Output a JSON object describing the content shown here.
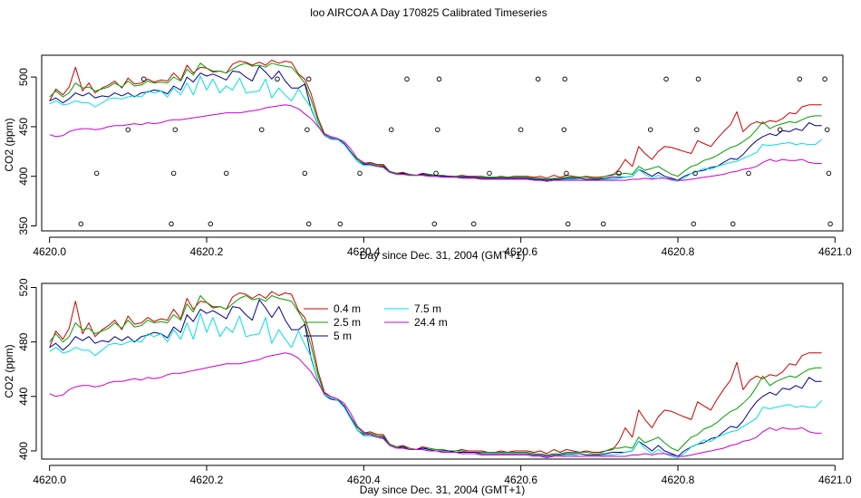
{
  "page_title": "loo AIRCOA A  Day 170825  Calibrated Timeseries",
  "chart_data": [
    {
      "type": "line",
      "title": "loo AIRCOA A  Day 170825  Calibrated Timeseries",
      "xlabel": "Day since Dec. 31, 2004 (GMT+1)",
      "ylabel": "CO2 (ppm)",
      "xlim": [
        4619.99,
        4621.01
      ],
      "ylim": [
        345,
        522
      ],
      "x_ticks": [
        "4620.0",
        "4620.2",
        "4620.4",
        "4620.6",
        "4620.8",
        "4621.0"
      ],
      "y_ticks": [
        "350",
        "400",
        "450",
        "500"
      ],
      "grid": false,
      "legend": "none",
      "series_ref": "shared",
      "markers": {
        "style": "open-circle",
        "points": [
          [
            4620.04,
            352
          ],
          [
            4620.06,
            403
          ],
          [
            4620.1,
            447
          ],
          [
            4620.12,
            498
          ],
          [
            4620.155,
            352
          ],
          [
            4620.158,
            403
          ],
          [
            4620.16,
            447
          ],
          [
            4620.205,
            352
          ],
          [
            4620.225,
            403
          ],
          [
            4620.27,
            447
          ],
          [
            4620.29,
            498
          ],
          [
            4620.325,
            403
          ],
          [
            4620.328,
            447
          ],
          [
            4620.33,
            352
          ],
          [
            4620.33,
            498
          ],
          [
            4620.37,
            352
          ],
          [
            4620.395,
            403
          ],
          [
            4620.435,
            447
          ],
          [
            4620.455,
            498
          ],
          [
            4620.49,
            352
          ],
          [
            4620.492,
            403
          ],
          [
            4620.494,
            447
          ],
          [
            4620.496,
            498
          ],
          [
            4620.54,
            352
          ],
          [
            4620.56,
            403
          ],
          [
            4620.6,
            447
          ],
          [
            4620.622,
            498
          ],
          [
            4620.655,
            447
          ],
          [
            4620.656,
            498
          ],
          [
            4620.658,
            403
          ],
          [
            4620.66,
            352
          ],
          [
            4620.705,
            352
          ],
          [
            4620.725,
            403
          ],
          [
            4620.765,
            447
          ],
          [
            4620.785,
            498
          ],
          [
            4620.82,
            352
          ],
          [
            4620.822,
            403
          ],
          [
            4620.824,
            447
          ],
          [
            4620.826,
            498
          ],
          [
            4620.87,
            352
          ],
          [
            4620.89,
            403
          ],
          [
            4620.93,
            447
          ],
          [
            4620.955,
            498
          ],
          [
            4620.987,
            498
          ],
          [
            4620.99,
            447
          ],
          [
            4620.992,
            403
          ],
          [
            4620.994,
            352
          ]
        ]
      }
    },
    {
      "type": "line",
      "title": "",
      "xlabel": "Day since Dec. 31, 2004 (GMT+1)",
      "ylabel": "CO2 (ppm)",
      "xlim": [
        4619.99,
        4621.01
      ],
      "ylim": [
        394,
        523
      ],
      "x_ticks": [
        "4620.0",
        "4620.2",
        "4620.4",
        "4620.6",
        "4620.8",
        "4621.0"
      ],
      "y_ticks": [
        "400",
        "440",
        "480",
        "520"
      ],
      "grid": false,
      "legend": "top-left",
      "series_ref": "shared"
    }
  ],
  "shared_series": {
    "x": [
      4620.0,
      4620.008,
      4620.017,
      4620.025,
      4620.033,
      4620.042,
      4620.05,
      4620.058,
      4620.067,
      4620.075,
      4620.083,
      4620.092,
      4620.1,
      4620.108,
      4620.117,
      4620.125,
      4620.133,
      4620.142,
      4620.15,
      4620.158,
      4620.167,
      4620.175,
      4620.183,
      4620.192,
      4620.2,
      4620.208,
      4620.217,
      4620.225,
      4620.233,
      4620.242,
      4620.25,
      4620.258,
      4620.267,
      4620.275,
      4620.283,
      4620.292,
      4620.3,
      4620.308,
      4620.317,
      4620.325,
      4620.333,
      4620.342,
      4620.35,
      4620.358,
      4620.367,
      4620.375,
      4620.383,
      4620.392,
      4620.4,
      4620.408,
      4620.417,
      4620.425,
      4620.433,
      4620.442,
      4620.45,
      4620.458,
      4620.467,
      4620.475,
      4620.483,
      4620.492,
      4620.5,
      4620.508,
      4620.517,
      4620.525,
      4620.533,
      4620.542,
      4620.55,
      4620.558,
      4620.567,
      4620.575,
      4620.583,
      4620.592,
      4620.6,
      4620.608,
      4620.617,
      4620.625,
      4620.633,
      4620.642,
      4620.65,
      4620.658,
      4620.667,
      4620.675,
      4620.683,
      4620.692,
      4620.7,
      4620.708,
      4620.717,
      4620.725,
      4620.733,
      4620.742,
      4620.75,
      4620.758,
      4620.767,
      4620.775,
      4620.783,
      4620.792,
      4620.8,
      4620.808,
      4620.817,
      4620.825,
      4620.833,
      4620.842,
      4620.85,
      4620.858,
      4620.867,
      4620.875,
      4620.883,
      4620.892,
      4620.9,
      4620.908,
      4620.917,
      4620.925,
      4620.933,
      4620.942,
      4620.95,
      4620.958,
      4620.967,
      4620.975,
      4620.983
    ],
    "series": [
      {
        "name": "0.4 m",
        "color": "#cc0000",
        "values": [
          476,
          488,
          482,
          490,
          510,
          486,
          494,
          484,
          489,
          492,
          496,
          489,
          499,
          493,
          494,
          498,
          495,
          497,
          496,
          504,
          497,
          512,
          504,
          510,
          509,
          505,
          506,
          504,
          513,
          516,
          515,
          512,
          515,
          512,
          517,
          514,
          516,
          515,
          503,
          498,
          483,
          458,
          443,
          440,
          438,
          433,
          425,
          417,
          413,
          414,
          412,
          412,
          405,
          403,
          404,
          402,
          401,
          403,
          402,
          401,
          401,
          400,
          400,
          401,
          400,
          400,
          400,
          399,
          399,
          400,
          399,
          400,
          400,
          400,
          399,
          400,
          398,
          401,
          399,
          401,
          400,
          399,
          400,
          399,
          399,
          400,
          401,
          407,
          417,
          410,
          430,
          423,
          417,
          425,
          430,
          429,
          427,
          425,
          423,
          436,
          433,
          430,
          438,
          445,
          452,
          465,
          445,
          452,
          455,
          453,
          456,
          455,
          458,
          464,
          463,
          470,
          472,
          472,
          472
        ]
      },
      {
        "name": "2.5 m",
        "color": "#00a000",
        "values": [
          480,
          486,
          480,
          484,
          494,
          489,
          490,
          486,
          488,
          490,
          494,
          490,
          496,
          491,
          492,
          496,
          494,
          495,
          494,
          500,
          496,
          508,
          502,
          514,
          509,
          506,
          506,
          504,
          508,
          512,
          514,
          511,
          512,
          510,
          514,
          512,
          511,
          510,
          502,
          494,
          477,
          455,
          442,
          440,
          438,
          433,
          425,
          417,
          413,
          413,
          411,
          411,
          405,
          403,
          403,
          402,
          401,
          402,
          402,
          401,
          401,
          400,
          400,
          400,
          399,
          399,
          399,
          399,
          399,
          399,
          399,
          399,
          399,
          399,
          398,
          398,
          397,
          398,
          398,
          399,
          399,
          399,
          399,
          398,
          398,
          400,
          402,
          402,
          403,
          402,
          410,
          406,
          408,
          410,
          406,
          402,
          400,
          405,
          410,
          412,
          416,
          418,
          421,
          425,
          429,
          431,
          435,
          440,
          447,
          455,
          448,
          451,
          453,
          455,
          454,
          457,
          460,
          461,
          461
        ]
      },
      {
        "name": "5 m",
        "color": "#00008b",
        "values": [
          476,
          479,
          474,
          478,
          484,
          481,
          484,
          479,
          481,
          480,
          484,
          481,
          484,
          480,
          484,
          485,
          487,
          486,
          483,
          491,
          487,
          500,
          495,
          504,
          501,
          503,
          500,
          497,
          506,
          505,
          500,
          496,
          511,
          505,
          498,
          506,
          496,
          489,
          489,
          493,
          468,
          451,
          441,
          438,
          437,
          433,
          425,
          415,
          412,
          412,
          410,
          410,
          404,
          402,
          403,
          401,
          401,
          402,
          401,
          400,
          400,
          400,
          399,
          399,
          399,
          399,
          398,
          398,
          398,
          398,
          398,
          398,
          398,
          398,
          397,
          397,
          396,
          397,
          397,
          398,
          398,
          398,
          397,
          397,
          397,
          398,
          399,
          399,
          399,
          400,
          407,
          404,
          400,
          404,
          400,
          398,
          396,
          400,
          403,
          405,
          406,
          409,
          410,
          414,
          418,
          417,
          422,
          430,
          436,
          440,
          443,
          441,
          446,
          445,
          448,
          446,
          454,
          451,
          451
        ]
      },
      {
        "name": "7.5 m",
        "color": "#00e0e0",
        "values": [
          473,
          476,
          472,
          473,
          476,
          474,
          474,
          470,
          474,
          478,
          479,
          478,
          480,
          481,
          480,
          486,
          484,
          486,
          480,
          489,
          482,
          494,
          482,
          501,
          487,
          498,
          484,
          491,
          487,
          499,
          484,
          485,
          486,
          498,
          479,
          489,
          482,
          476,
          488,
          478,
          469,
          451,
          441,
          439,
          437,
          432,
          424,
          415,
          411,
          411,
          410,
          409,
          404,
          402,
          402,
          401,
          401,
          401,
          400,
          400,
          399,
          399,
          399,
          398,
          398,
          398,
          397,
          397,
          397,
          397,
          397,
          397,
          397,
          397,
          396,
          396,
          395,
          396,
          396,
          397,
          397,
          396,
          396,
          396,
          396,
          397,
          397,
          398,
          399,
          400,
          407,
          402,
          398,
          401,
          398,
          396,
          395,
          398,
          403,
          405,
          408,
          407,
          410,
          412,
          414,
          415,
          418,
          421,
          424,
          432,
          431,
          432,
          433,
          434,
          432,
          433,
          432,
          432,
          437
        ]
      },
      {
        "name": "24.4 m",
        "color": "#cc00cc",
        "values": [
          442,
          440,
          441,
          445,
          447,
          448,
          448,
          447,
          448,
          450,
          451,
          451,
          452,
          453,
          452,
          454,
          453,
          454,
          456,
          457,
          457,
          458,
          459,
          460,
          461,
          462,
          463,
          464,
          464,
          464,
          465,
          466,
          467,
          469,
          470,
          471,
          472,
          471,
          468,
          463,
          458,
          450,
          442,
          440,
          438,
          435,
          428,
          418,
          414,
          412,
          410,
          409,
          404,
          402,
          402,
          401,
          401,
          401,
          400,
          400,
          399,
          399,
          399,
          398,
          398,
          398,
          397,
          397,
          397,
          397,
          397,
          397,
          397,
          397,
          396,
          396,
          395,
          396,
          396,
          396,
          396,
          396,
          396,
          396,
          396,
          396,
          396,
          396,
          396,
          397,
          397,
          398,
          397,
          398,
          398,
          397,
          396,
          396,
          397,
          398,
          399,
          400,
          401,
          402,
          404,
          405,
          407,
          408,
          410,
          414,
          417,
          415,
          417,
          416,
          416,
          417,
          414,
          413,
          413
        ]
      }
    ]
  },
  "legend_entries": [
    "0.4 m",
    "2.5 m",
    "5 m",
    "7.5 m",
    "24.4 m"
  ]
}
